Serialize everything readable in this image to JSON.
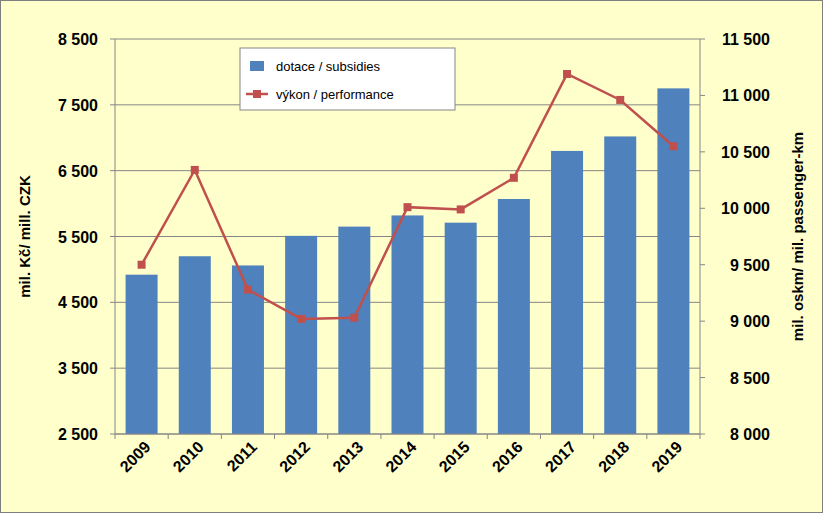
{
  "chart_data": {
    "type": "bar",
    "categories": [
      "2009",
      "2010",
      "2011",
      "2012",
      "2013",
      "2014",
      "2015",
      "2016",
      "2017",
      "2018",
      "2019"
    ],
    "series": [
      {
        "name": "dotace / subsidies",
        "type": "bar",
        "color": "#4F81BD",
        "values": [
          4920,
          5200,
          5060,
          5510,
          5650,
          5820,
          5710,
          6070,
          6800,
          7020,
          7750
        ]
      },
      {
        "name": "výkon / performance",
        "type": "line",
        "axis": "y2",
        "color": "#C0504D",
        "marker": "square",
        "values": [
          9500,
          10340,
          9280,
          9020,
          9030,
          10010,
          9990,
          10270,
          11190,
          10960,
          10550
        ]
      }
    ],
    "ylabel": "mil. Kč/ mill. CZK",
    "y2label": "mil. oskm/ mil. passenger-km",
    "ylim": [
      2500,
      8500
    ],
    "yticks": [
      {
        "value": 2500,
        "label": "2 500"
      },
      {
        "value": 3500,
        "label": "3 500"
      },
      {
        "value": 4500,
        "label": "4 500"
      },
      {
        "value": 5500,
        "label": "5 500"
      },
      {
        "value": 6500,
        "label": "6 500"
      },
      {
        "value": 7500,
        "label": "7 500"
      },
      {
        "value": 8500,
        "label": "8 500"
      }
    ],
    "y2lim": [
      8000,
      11500
    ],
    "y2ticks": [
      {
        "value": 8000,
        "label": "8 000"
      },
      {
        "value": 8500,
        "label": "8 500"
      },
      {
        "value": 9000,
        "label": "9 000"
      },
      {
        "value": 9500,
        "label": "9 500"
      },
      {
        "value": 10000,
        "label": "10 000"
      },
      {
        "value": 10500,
        "label": "10 500"
      },
      {
        "value": 11000,
        "label": "11 000"
      },
      {
        "value": 11500,
        "label": "11 500"
      }
    ],
    "grid": true,
    "legend": "top"
  }
}
